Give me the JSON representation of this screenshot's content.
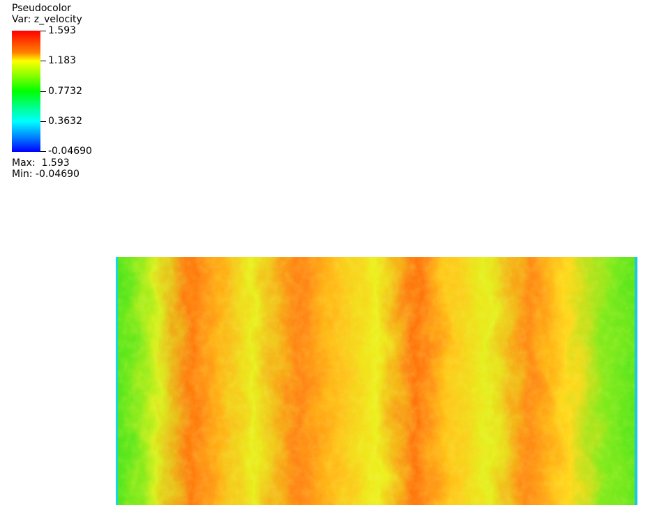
{
  "legend": {
    "title": "Pseudocolor",
    "var_label": "Var: z_velocity",
    "ticks": [
      {
        "label": "1.593",
        "value": 1.593
      },
      {
        "label": "1.183",
        "value": 1.183
      },
      {
        "label": "0.7732",
        "value": 0.7732
      },
      {
        "label": "0.3632",
        "value": 0.3632
      },
      {
        "label": "-0.04690",
        "value": -0.0469
      }
    ],
    "max_label": "Max:  1.593",
    "min_label": "Min: -0.04690",
    "colormap": [
      "#0000ff",
      "#00ffff",
      "#00ff00",
      "#ffff00",
      "#ff0000"
    ]
  },
  "plot": {
    "field": "z_velocity"
  }
}
